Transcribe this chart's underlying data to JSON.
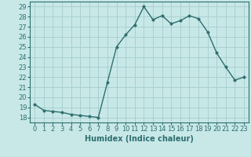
{
  "x": [
    0,
    1,
    2,
    3,
    4,
    5,
    6,
    7,
    8,
    9,
    10,
    11,
    12,
    13,
    14,
    15,
    16,
    17,
    18,
    19,
    20,
    21,
    22,
    23
  ],
  "y": [
    19.3,
    18.7,
    18.6,
    18.5,
    18.3,
    18.2,
    18.1,
    18.0,
    21.5,
    25.0,
    26.2,
    27.2,
    29.0,
    27.7,
    28.1,
    27.3,
    27.6,
    28.1,
    27.8,
    26.5,
    24.4,
    23.0,
    21.7,
    22.0
  ],
  "line_color": "#2e6e6e",
  "marker": "o",
  "markersize": 2.5,
  "linewidth": 1.0,
  "xlabel": "Humidex (Indice chaleur)",
  "bg_color": "#c8e8e8",
  "grid_color": "#aad0d0",
  "ylim": [
    17.5,
    29.5
  ],
  "xlim": [
    -0.5,
    23.5
  ],
  "yticks": [
    18,
    19,
    20,
    21,
    22,
    23,
    24,
    25,
    26,
    27,
    28,
    29
  ],
  "xticks": [
    0,
    1,
    2,
    3,
    4,
    5,
    6,
    7,
    8,
    9,
    10,
    11,
    12,
    13,
    14,
    15,
    16,
    17,
    18,
    19,
    20,
    21,
    22,
    23
  ],
  "tick_color": "#2e6e6e",
  "label_fontsize": 7,
  "tick_fontsize": 6
}
